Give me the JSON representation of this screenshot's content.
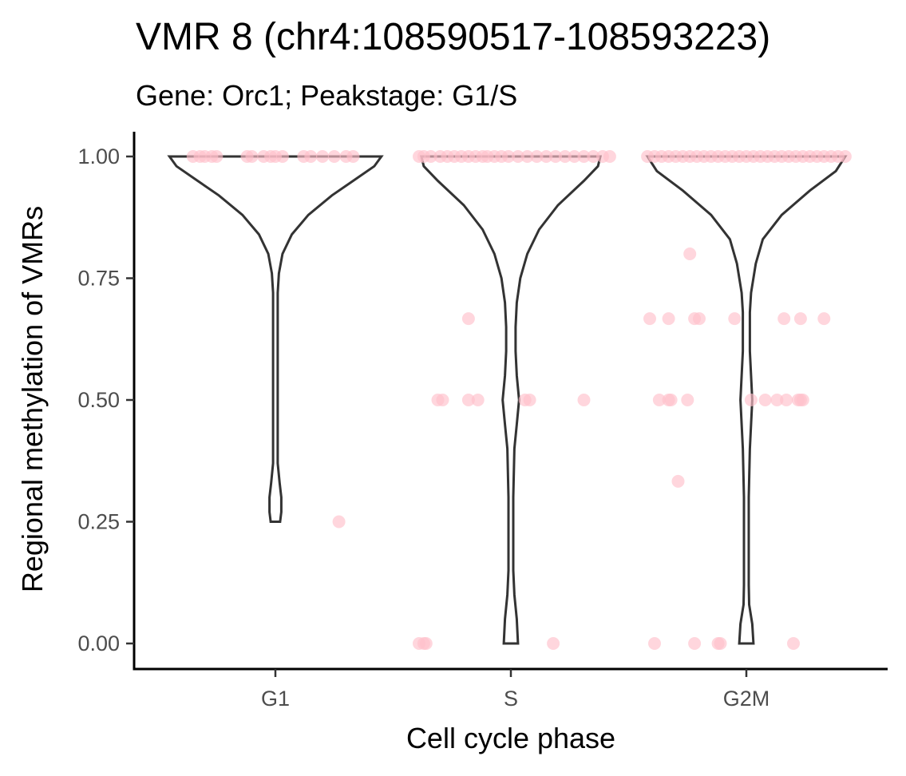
{
  "chart_data": {
    "type": "violin",
    "title": "VMR 8 (chr4:108590517-108593223)",
    "subtitle": "Gene: Orc1; Peakstage: G1/S",
    "xlabel": "Cell cycle phase",
    "ylabel": "Regional methylation of VMRs",
    "categories": [
      "G1",
      "S",
      "G2M"
    ],
    "ylim": [
      -0.05,
      1.05
    ],
    "yticks": [
      0.0,
      0.25,
      0.5,
      0.75,
      1.0
    ],
    "ytick_labels": [
      "0.00",
      "0.25",
      "0.50",
      "0.75",
      "1.00"
    ],
    "grid": false,
    "point_color": "#ffc0cb",
    "outline_color": "#333333",
    "points": {
      "G1": [
        {
          "x": -0.35,
          "y": 1.0
        },
        {
          "x": -0.32,
          "y": 1.0
        },
        {
          "x": -0.3,
          "y": 1.0
        },
        {
          "x": -0.27,
          "y": 1.0
        },
        {
          "x": -0.25,
          "y": 1.0
        },
        {
          "x": -0.12,
          "y": 1.0
        },
        {
          "x": -0.1,
          "y": 1.0
        },
        {
          "x": -0.05,
          "y": 1.0
        },
        {
          "x": -0.02,
          "y": 1.0
        },
        {
          "x": 0.0,
          "y": 1.0
        },
        {
          "x": 0.03,
          "y": 1.0
        },
        {
          "x": 0.12,
          "y": 1.0
        },
        {
          "x": 0.15,
          "y": 1.0
        },
        {
          "x": 0.2,
          "y": 1.0
        },
        {
          "x": 0.25,
          "y": 1.0
        },
        {
          "x": 0.3,
          "y": 1.0
        },
        {
          "x": 0.33,
          "y": 1.0
        },
        {
          "x": 0.27,
          "y": 0.25
        }
      ],
      "S": [
        {
          "x": -0.39,
          "y": 1.0
        },
        {
          "x": -0.37,
          "y": 1.0
        },
        {
          "x": -0.34,
          "y": 1.0
        },
        {
          "x": -0.3,
          "y": 1.0
        },
        {
          "x": -0.27,
          "y": 1.0
        },
        {
          "x": -0.24,
          "y": 1.0
        },
        {
          "x": -0.21,
          "y": 1.0
        },
        {
          "x": -0.18,
          "y": 1.0
        },
        {
          "x": -0.15,
          "y": 1.0
        },
        {
          "x": -0.12,
          "y": 1.0
        },
        {
          "x": -0.1,
          "y": 1.0
        },
        {
          "x": -0.07,
          "y": 1.0
        },
        {
          "x": -0.04,
          "y": 1.0
        },
        {
          "x": -0.01,
          "y": 1.0
        },
        {
          "x": 0.03,
          "y": 1.0
        },
        {
          "x": 0.07,
          "y": 1.0
        },
        {
          "x": 0.11,
          "y": 1.0
        },
        {
          "x": 0.15,
          "y": 1.0
        },
        {
          "x": 0.19,
          "y": 1.0
        },
        {
          "x": 0.23,
          "y": 1.0
        },
        {
          "x": 0.27,
          "y": 1.0
        },
        {
          "x": 0.31,
          "y": 1.0
        },
        {
          "x": 0.35,
          "y": 1.0
        },
        {
          "x": 0.39,
          "y": 1.0
        },
        {
          "x": 0.42,
          "y": 1.0
        },
        {
          "x": -0.18,
          "y": 0.667
        },
        {
          "x": -0.31,
          "y": 0.5
        },
        {
          "x": -0.29,
          "y": 0.5
        },
        {
          "x": -0.18,
          "y": 0.5
        },
        {
          "x": -0.14,
          "y": 0.5
        },
        {
          "x": 0.06,
          "y": 0.5
        },
        {
          "x": 0.08,
          "y": 0.5
        },
        {
          "x": 0.31,
          "y": 0.5
        },
        {
          "x": -0.39,
          "y": 0.0
        },
        {
          "x": -0.37,
          "y": 0.0
        },
        {
          "x": -0.36,
          "y": 0.0
        },
        {
          "x": 0.18,
          "y": 0.0
        }
      ],
      "G2M": [
        {
          "x": -0.42,
          "y": 1.0
        },
        {
          "x": -0.39,
          "y": 1.0
        },
        {
          "x": -0.36,
          "y": 1.0
        },
        {
          "x": -0.33,
          "y": 1.0
        },
        {
          "x": -0.3,
          "y": 1.0
        },
        {
          "x": -0.27,
          "y": 1.0
        },
        {
          "x": -0.24,
          "y": 1.0
        },
        {
          "x": -0.21,
          "y": 1.0
        },
        {
          "x": -0.18,
          "y": 1.0
        },
        {
          "x": -0.15,
          "y": 1.0
        },
        {
          "x": -0.12,
          "y": 1.0
        },
        {
          "x": -0.09,
          "y": 1.0
        },
        {
          "x": -0.06,
          "y": 1.0
        },
        {
          "x": -0.03,
          "y": 1.0
        },
        {
          "x": 0.0,
          "y": 1.0
        },
        {
          "x": 0.03,
          "y": 1.0
        },
        {
          "x": 0.06,
          "y": 1.0
        },
        {
          "x": 0.09,
          "y": 1.0
        },
        {
          "x": 0.12,
          "y": 1.0
        },
        {
          "x": 0.15,
          "y": 1.0
        },
        {
          "x": 0.18,
          "y": 1.0
        },
        {
          "x": 0.21,
          "y": 1.0
        },
        {
          "x": 0.24,
          "y": 1.0
        },
        {
          "x": 0.27,
          "y": 1.0
        },
        {
          "x": 0.3,
          "y": 1.0
        },
        {
          "x": 0.33,
          "y": 1.0
        },
        {
          "x": 0.36,
          "y": 1.0
        },
        {
          "x": 0.39,
          "y": 1.0
        },
        {
          "x": 0.42,
          "y": 1.0
        },
        {
          "x": -0.24,
          "y": 0.8
        },
        {
          "x": -0.41,
          "y": 0.667
        },
        {
          "x": -0.33,
          "y": 0.667
        },
        {
          "x": -0.22,
          "y": 0.667
        },
        {
          "x": -0.2,
          "y": 0.667
        },
        {
          "x": -0.05,
          "y": 0.667
        },
        {
          "x": 0.16,
          "y": 0.667
        },
        {
          "x": 0.23,
          "y": 0.667
        },
        {
          "x": 0.33,
          "y": 0.667
        },
        {
          "x": -0.37,
          "y": 0.5
        },
        {
          "x": -0.33,
          "y": 0.5
        },
        {
          "x": -0.32,
          "y": 0.5
        },
        {
          "x": -0.25,
          "y": 0.5
        },
        {
          "x": 0.02,
          "y": 0.5
        },
        {
          "x": 0.08,
          "y": 0.5
        },
        {
          "x": 0.13,
          "y": 0.5
        },
        {
          "x": 0.17,
          "y": 0.5
        },
        {
          "x": 0.22,
          "y": 0.5
        },
        {
          "x": 0.23,
          "y": 0.5
        },
        {
          "x": 0.24,
          "y": 0.5
        },
        {
          "x": -0.29,
          "y": 0.333
        },
        {
          "x": -0.39,
          "y": 0.0
        },
        {
          "x": -0.22,
          "y": 0.0
        },
        {
          "x": -0.12,
          "y": 0.0
        },
        {
          "x": -0.11,
          "y": 0.0
        },
        {
          "x": 0.2,
          "y": 0.0
        }
      ]
    },
    "violins": {
      "G1": [
        [
          0.25,
          0.02
        ],
        [
          0.27,
          0.025
        ],
        [
          0.3,
          0.025
        ],
        [
          0.33,
          0.018
        ],
        [
          0.37,
          0.01
        ],
        [
          0.45,
          0.01
        ],
        [
          0.6,
          0.01
        ],
        [
          0.72,
          0.01
        ],
        [
          0.76,
          0.015
        ],
        [
          0.8,
          0.03
        ],
        [
          0.84,
          0.07
        ],
        [
          0.88,
          0.14
        ],
        [
          0.92,
          0.24
        ],
        [
          0.95,
          0.33
        ],
        [
          0.98,
          0.42
        ],
        [
          1.0,
          0.45
        ]
      ],
      "S": [
        [
          0.0,
          0.03
        ],
        [
          0.05,
          0.025
        ],
        [
          0.1,
          0.015
        ],
        [
          0.15,
          0.01
        ],
        [
          0.3,
          0.01
        ],
        [
          0.4,
          0.015
        ],
        [
          0.45,
          0.025
        ],
        [
          0.5,
          0.035
        ],
        [
          0.55,
          0.025
        ],
        [
          0.6,
          0.02
        ],
        [
          0.65,
          0.02
        ],
        [
          0.7,
          0.025
        ],
        [
          0.75,
          0.04
        ],
        [
          0.8,
          0.07
        ],
        [
          0.85,
          0.12
        ],
        [
          0.9,
          0.2
        ],
        [
          0.95,
          0.31
        ],
        [
          0.98,
          0.37
        ],
        [
          1.0,
          0.38
        ]
      ],
      "G2M": [
        [
          0.0,
          0.03
        ],
        [
          0.04,
          0.025
        ],
        [
          0.08,
          0.012
        ],
        [
          0.12,
          0.01
        ],
        [
          0.3,
          0.01
        ],
        [
          0.4,
          0.015
        ],
        [
          0.45,
          0.02
        ],
        [
          0.5,
          0.025
        ],
        [
          0.55,
          0.02
        ],
        [
          0.6,
          0.015
        ],
        [
          0.68,
          0.015
        ],
        [
          0.72,
          0.02
        ],
        [
          0.78,
          0.04
        ],
        [
          0.83,
          0.07
        ],
        [
          0.88,
          0.15
        ],
        [
          0.93,
          0.27
        ],
        [
          0.97,
          0.38
        ],
        [
          1.0,
          0.42
        ]
      ]
    }
  }
}
